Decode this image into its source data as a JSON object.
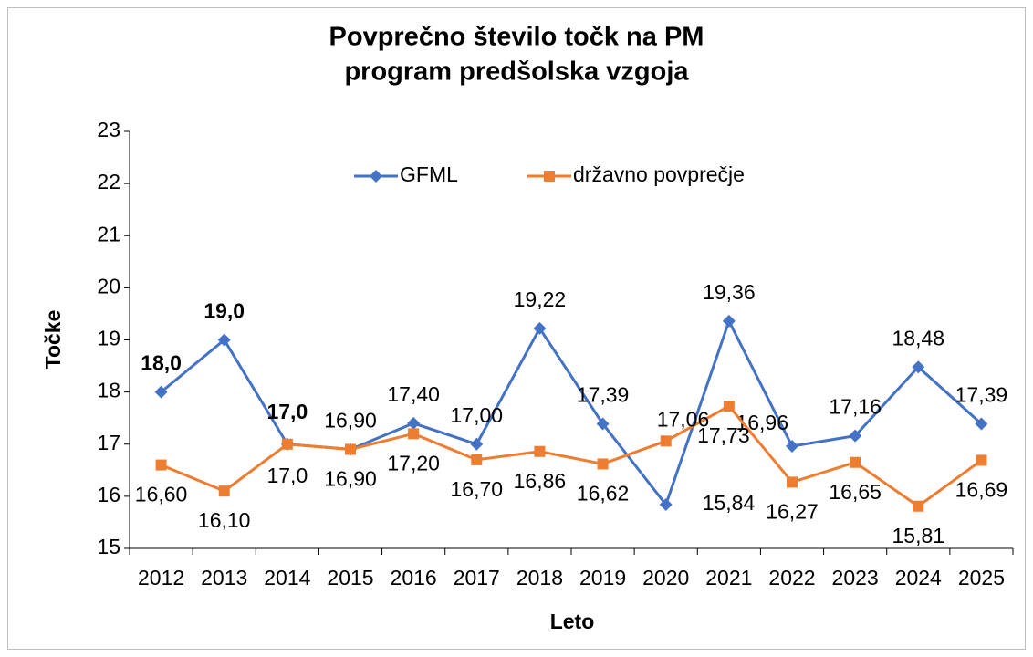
{
  "chart_data": {
    "type": "line",
    "title": [
      "Povprečno število točk na PM",
      "program predšolska vzgoja"
    ],
    "x_label": "Leto",
    "y_label": "Točke",
    "categories": [
      "2012",
      "2013",
      "2014",
      "2015",
      "2016",
      "2017",
      "2018",
      "2019",
      "2020",
      "2021",
      "2022",
      "2023",
      "2024",
      "2025"
    ],
    "series": [
      {
        "name": "GFML",
        "color": "#4472c4",
        "marker": "diamond",
        "values": [
          18.0,
          19.0,
          17.0,
          16.9,
          17.4,
          17.0,
          19.22,
          17.39,
          15.84,
          19.36,
          16.96,
          17.16,
          18.48,
          17.39
        ],
        "value_labels": [
          "18,0",
          "19,0",
          "17,0",
          "16,90",
          "17,40",
          "17,00",
          "19,22",
          "17,39",
          "15,84",
          "19,36",
          "16,96",
          "17,16",
          "18,48",
          "17,39"
        ]
      },
      {
        "name": "državno povprečje",
        "color": "#ed7d31",
        "marker": "square",
        "values": [
          16.6,
          16.1,
          17.0,
          16.9,
          17.2,
          16.7,
          16.86,
          16.62,
          17.06,
          17.73,
          16.27,
          16.65,
          15.81,
          16.69
        ],
        "value_labels": [
          "16,60",
          "16,10",
          "17,0",
          "16,90",
          "17,20",
          "16,70",
          "16,86",
          "16,62",
          "17,06",
          "17,73",
          "16,27",
          "16,65",
          "15,81",
          "16,69"
        ]
      }
    ],
    "ylim": [
      15,
      23
    ],
    "yticks": [
      15,
      16,
      17,
      18,
      19,
      20,
      21,
      22,
      23
    ],
    "grid": false,
    "legend": "top"
  }
}
